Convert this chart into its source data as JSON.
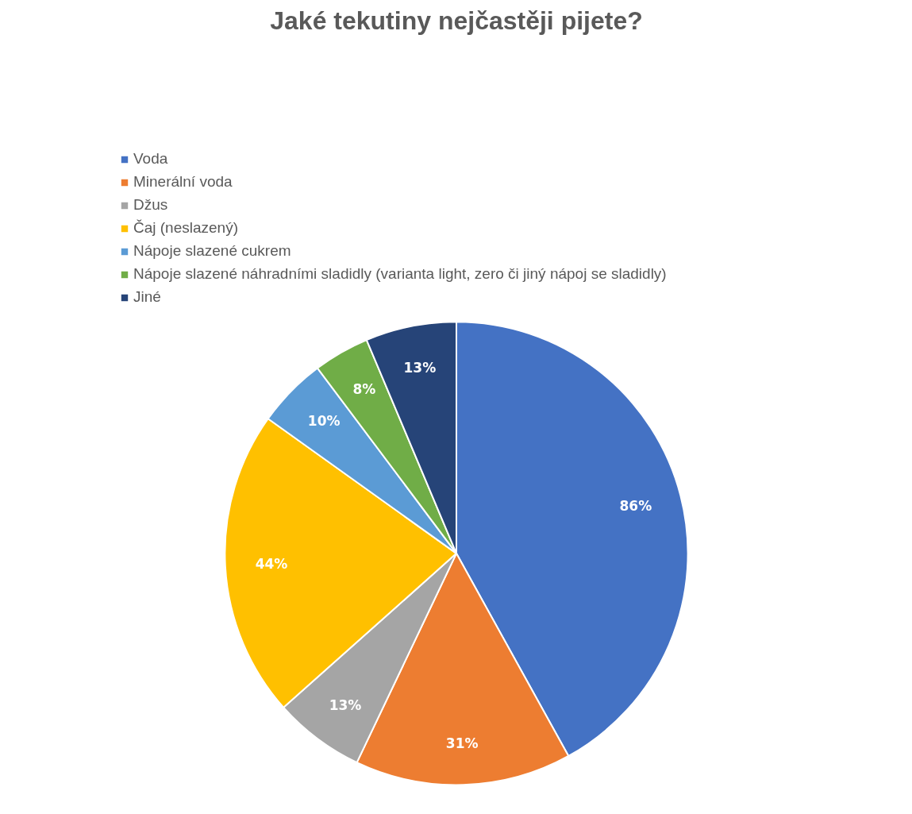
{
  "chart_data": {
    "type": "pie",
    "title": "Jaké tekutiny nejčastěji pijete?",
    "categories": [
      "Voda",
      "Minerální voda",
      "Džus",
      "Čaj (neslazený)",
      "Nápoje slazené cukrem",
      "Nápoje slazené náhradními sladidly (varianta light, zero či jiný nápoj se sladidly)",
      "Jiné"
    ],
    "values": [
      86,
      31,
      13,
      44,
      10,
      8,
      13
    ],
    "value_labels": [
      "86%",
      "31%",
      "13%",
      "44%",
      "10%",
      "8%",
      "13%"
    ],
    "colors": [
      "#4472c4",
      "#ed7d31",
      "#a5a5a5",
      "#ffc000",
      "#5b9bd5",
      "#70ad47",
      "#264478"
    ],
    "legend": "top"
  }
}
